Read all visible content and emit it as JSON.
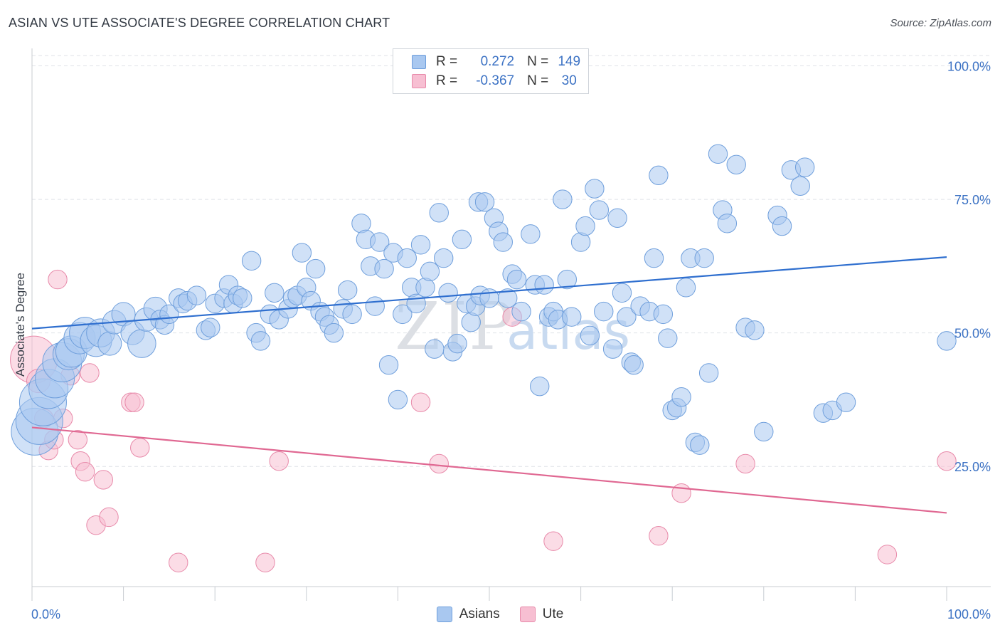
{
  "title": "ASIAN VS UTE ASSOCIATE'S DEGREE CORRELATION CHART",
  "source": "Source: ZipAtlas.com",
  "watermark": {
    "zip": "ZIP",
    "atlas": "atlas"
  },
  "legend": {
    "rows": [
      {
        "r_label": "R =",
        "r_value": "0.272",
        "n_label": "N =",
        "n_value": "149"
      },
      {
        "r_label": "R =",
        "r_value": "-0.367",
        "n_label": "N =",
        "n_value": "30"
      }
    ]
  },
  "bottom_legend": {
    "items": [
      {
        "label": "Asians"
      },
      {
        "label": "Ute"
      }
    ]
  },
  "colors": {
    "asian_fill": "#a9c8f0",
    "asian_stroke": "#6f9fdc",
    "asian_line": "#2f6fcf",
    "ute_fill": "#f7bfd2",
    "ute_stroke": "#e88aaa",
    "ute_line": "#e06892",
    "axis_label": "#3c72c4",
    "grid": "#dfe2e7"
  },
  "chart_data": {
    "type": "scatter",
    "title": "ASIAN VS UTE ASSOCIATE'S DEGREE CORRELATION CHART",
    "xlabel": "",
    "ylabel": "Associate's Degree",
    "xlim": [
      0,
      100
    ],
    "ylim": [
      2.5,
      103
    ],
    "x_tick_labels": [
      "0.0%",
      "100.0%"
    ],
    "y_ticks": [
      25,
      50,
      75,
      100
    ],
    "y_tick_labels": [
      "25.0%",
      "50.0%",
      "75.0%",
      "100.0%"
    ],
    "grid": true,
    "legend_position": "top-center",
    "series": [
      {
        "name": "Asians",
        "r": 0.272,
        "n": 149,
        "trend": [
          [
            0,
            50.8
          ],
          [
            100,
            64.2
          ]
        ],
        "points": [
          [
            0.3,
            31.5,
            3
          ],
          [
            0.8,
            33.5,
            3
          ],
          [
            1.2,
            37.0,
            3
          ],
          [
            1.8,
            39.5,
            2.5
          ],
          [
            2.5,
            41.5,
            2.5
          ],
          [
            3.3,
            44.5,
            2.5
          ],
          [
            4.0,
            46.0,
            2
          ],
          [
            4.3,
            46.5,
            2
          ],
          [
            5.2,
            49.0,
            2
          ],
          [
            5.8,
            50.0,
            2
          ],
          [
            7.0,
            48.5,
            2
          ],
          [
            7.5,
            50.0,
            1.8
          ],
          [
            8.5,
            48.0,
            1.5
          ],
          [
            9.0,
            52.0,
            1.5
          ],
          [
            10.0,
            53.5,
            1.5
          ],
          [
            11.0,
            50.0,
            1.5
          ],
          [
            12.0,
            48.0,
            1.8
          ],
          [
            12.5,
            52.5,
            1.5
          ],
          [
            13.5,
            54.5,
            1.5
          ],
          [
            14.0,
            52.5,
            1.2
          ],
          [
            14.5,
            51.5,
            1.2
          ],
          [
            15.0,
            53.5,
            1.2
          ],
          [
            16.0,
            56.5,
            1.2
          ],
          [
            16.5,
            55.5,
            1.2
          ],
          [
            17.0,
            56.0,
            1.2
          ],
          [
            18.0,
            57.0,
            1.2
          ],
          [
            19.0,
            50.5,
            1.2
          ],
          [
            19.5,
            51.0,
            1.2
          ],
          [
            20.0,
            55.5,
            1.2
          ],
          [
            21.0,
            56.5,
            1.2
          ],
          [
            21.5,
            59.0,
            1.2
          ],
          [
            22.0,
            55.5,
            1.2
          ],
          [
            22.5,
            57.0,
            1.2
          ],
          [
            23.0,
            56.5,
            1.2
          ],
          [
            24.0,
            63.5,
            1.2
          ],
          [
            24.5,
            50.0,
            1.2
          ],
          [
            25.0,
            48.5,
            1.2
          ],
          [
            26.0,
            53.5,
            1.2
          ],
          [
            26.5,
            57.5,
            1.2
          ],
          [
            27.0,
            52.5,
            1.2
          ],
          [
            28.0,
            54.5,
            1.2
          ],
          [
            28.5,
            56.5,
            1.2
          ],
          [
            29.0,
            57.0,
            1.2
          ],
          [
            29.5,
            65.0,
            1.2
          ],
          [
            30.0,
            58.5,
            1.2
          ],
          [
            30.5,
            56.0,
            1.2
          ],
          [
            31.0,
            62.0,
            1.2
          ],
          [
            31.5,
            54.0,
            1.2
          ],
          [
            32.0,
            53.0,
            1.2
          ],
          [
            32.5,
            51.5,
            1.2
          ],
          [
            33.0,
            50.0,
            1.2
          ],
          [
            34.0,
            54.5,
            1.2
          ],
          [
            34.5,
            58.0,
            1.2
          ],
          [
            35.0,
            53.5,
            1.2
          ],
          [
            36.0,
            70.5,
            1.2
          ],
          [
            36.5,
            67.5,
            1.2
          ],
          [
            37.0,
            62.5,
            1.2
          ],
          [
            37.5,
            55.0,
            1.2
          ],
          [
            38.0,
            67.0,
            1.2
          ],
          [
            38.5,
            62.0,
            1.2
          ],
          [
            39.0,
            44.0,
            1.2
          ],
          [
            39.5,
            65.0,
            1.2
          ],
          [
            40.0,
            37.5,
            1.2
          ],
          [
            40.5,
            53.5,
            1.2
          ],
          [
            41.0,
            64.0,
            1.2
          ],
          [
            41.5,
            58.5,
            1.2
          ],
          [
            42.0,
            55.5,
            1.2
          ],
          [
            42.5,
            66.5,
            1.2
          ],
          [
            43.0,
            58.5,
            1.2
          ],
          [
            43.5,
            61.5,
            1.2
          ],
          [
            44.0,
            47.0,
            1.2
          ],
          [
            44.5,
            72.5,
            1.2
          ],
          [
            45.0,
            64.0,
            1.2
          ],
          [
            45.5,
            57.5,
            1.2
          ],
          [
            46.0,
            46.5,
            1.2
          ],
          [
            46.5,
            48.0,
            1.2
          ],
          [
            47.0,
            67.5,
            1.2
          ],
          [
            47.5,
            55.5,
            1.2
          ],
          [
            48.0,
            52.0,
            1.2
          ],
          [
            48.5,
            55.0,
            1.2
          ],
          [
            48.8,
            74.5,
            1.2
          ],
          [
            49.0,
            57.0,
            1.2
          ],
          [
            49.5,
            74.5,
            1.2
          ],
          [
            50.0,
            56.5,
            1.2
          ],
          [
            50.5,
            71.5,
            1.2
          ],
          [
            51.0,
            69.0,
            1.2
          ],
          [
            51.5,
            67.0,
            1.2
          ],
          [
            52.0,
            56.5,
            1.2
          ],
          [
            52.5,
            61.0,
            1.2
          ],
          [
            53.0,
            60.0,
            1.2
          ],
          [
            53.5,
            54.0,
            1.2
          ],
          [
            54.5,
            68.5,
            1.2
          ],
          [
            55.0,
            59.0,
            1.2
          ],
          [
            55.5,
            40.0,
            1.2
          ],
          [
            56.0,
            59.0,
            1.2
          ],
          [
            56.5,
            53.0,
            1.2
          ],
          [
            57.0,
            54.0,
            1.2
          ],
          [
            57.5,
            52.5,
            1.2
          ],
          [
            58.0,
            75.0,
            1.2
          ],
          [
            58.5,
            60.0,
            1.2
          ],
          [
            59.0,
            53.0,
            1.2
          ],
          [
            60.0,
            67.0,
            1.2
          ],
          [
            60.5,
            70.0,
            1.2
          ],
          [
            61.0,
            49.5,
            1.2
          ],
          [
            61.5,
            77.0,
            1.2
          ],
          [
            62.0,
            73.0,
            1.2
          ],
          [
            62.5,
            54.0,
            1.2
          ],
          [
            63.5,
            47.0,
            1.2
          ],
          [
            64.0,
            71.5,
            1.2
          ],
          [
            64.5,
            57.5,
            1.2
          ],
          [
            65.0,
            53.0,
            1.2
          ],
          [
            65.5,
            44.5,
            1.2
          ],
          [
            65.8,
            44.0,
            1.2
          ],
          [
            66.5,
            55.0,
            1.2
          ],
          [
            67.5,
            54.0,
            1.2
          ],
          [
            68.0,
            64.0,
            1.2
          ],
          [
            68.5,
            79.5,
            1.2
          ],
          [
            69.0,
            53.5,
            1.2
          ],
          [
            69.5,
            49.0,
            1.2
          ],
          [
            70.0,
            35.5,
            1.2
          ],
          [
            70.5,
            36.0,
            1.2
          ],
          [
            71.0,
            38.0,
            1.2
          ],
          [
            71.5,
            58.5,
            1.2
          ],
          [
            72.0,
            64.0,
            1.2
          ],
          [
            72.5,
            29.5,
            1.2
          ],
          [
            73.0,
            29.0,
            1.2
          ],
          [
            73.5,
            64.0,
            1.2
          ],
          [
            74.0,
            42.5,
            1.2
          ],
          [
            75.0,
            83.5,
            1.2
          ],
          [
            75.5,
            73.0,
            1.2
          ],
          [
            76.0,
            70.5,
            1.2
          ],
          [
            77.0,
            81.5,
            1.2
          ],
          [
            78.0,
            51.0,
            1.2
          ],
          [
            79.0,
            50.5,
            1.2
          ],
          [
            80.0,
            31.5,
            1.2
          ],
          [
            81.5,
            72.0,
            1.2
          ],
          [
            82.0,
            70.0,
            1.2
          ],
          [
            83.0,
            80.5,
            1.2
          ],
          [
            84.0,
            77.5,
            1.2
          ],
          [
            84.5,
            81.0,
            1.2
          ],
          [
            86.5,
            35.0,
            1.2
          ],
          [
            87.5,
            35.5,
            1.2
          ],
          [
            89.0,
            37.0,
            1.2
          ],
          [
            100.0,
            48.5,
            1.2
          ]
        ]
      },
      {
        "name": "Ute",
        "r": -0.367,
        "n": 30,
        "trend": [
          [
            0,
            32.3
          ],
          [
            100,
            16.3
          ]
        ],
        "points": [
          [
            0.2,
            45.0,
            3
          ],
          [
            0.7,
            41.0,
            1.5
          ],
          [
            1.3,
            34.0,
            1.2
          ],
          [
            1.8,
            28.0,
            1.2
          ],
          [
            2.4,
            30.0,
            1.2
          ],
          [
            2.8,
            60.0,
            1.2
          ],
          [
            3.4,
            34.0,
            1.2
          ],
          [
            4.2,
            42.0,
            1.2
          ],
          [
            5.0,
            30.0,
            1.2
          ],
          [
            5.3,
            26.0,
            1.2
          ],
          [
            5.8,
            24.0,
            1.2
          ],
          [
            6.3,
            42.5,
            1.2
          ],
          [
            7.0,
            14.0,
            1.2
          ],
          [
            7.8,
            22.5,
            1.2
          ],
          [
            8.4,
            15.5,
            1.2
          ],
          [
            10.8,
            37.0,
            1.2
          ],
          [
            11.2,
            37.0,
            1.2
          ],
          [
            11.8,
            28.5,
            1.2
          ],
          [
            16.0,
            7.0,
            1.2
          ],
          [
            25.5,
            7.0,
            1.2
          ],
          [
            27.0,
            26.0,
            1.2
          ],
          [
            42.5,
            37.0,
            1.2
          ],
          [
            44.5,
            25.5,
            1.2
          ],
          [
            52.5,
            53.0,
            1.2
          ],
          [
            57.0,
            11.0,
            1.2
          ],
          [
            68.5,
            12.0,
            1.2
          ],
          [
            71.0,
            20.0,
            1.2
          ],
          [
            78.0,
            25.5,
            1.2
          ],
          [
            93.5,
            8.5,
            1.2
          ],
          [
            100.0,
            26.0,
            1.2
          ]
        ]
      }
    ]
  }
}
